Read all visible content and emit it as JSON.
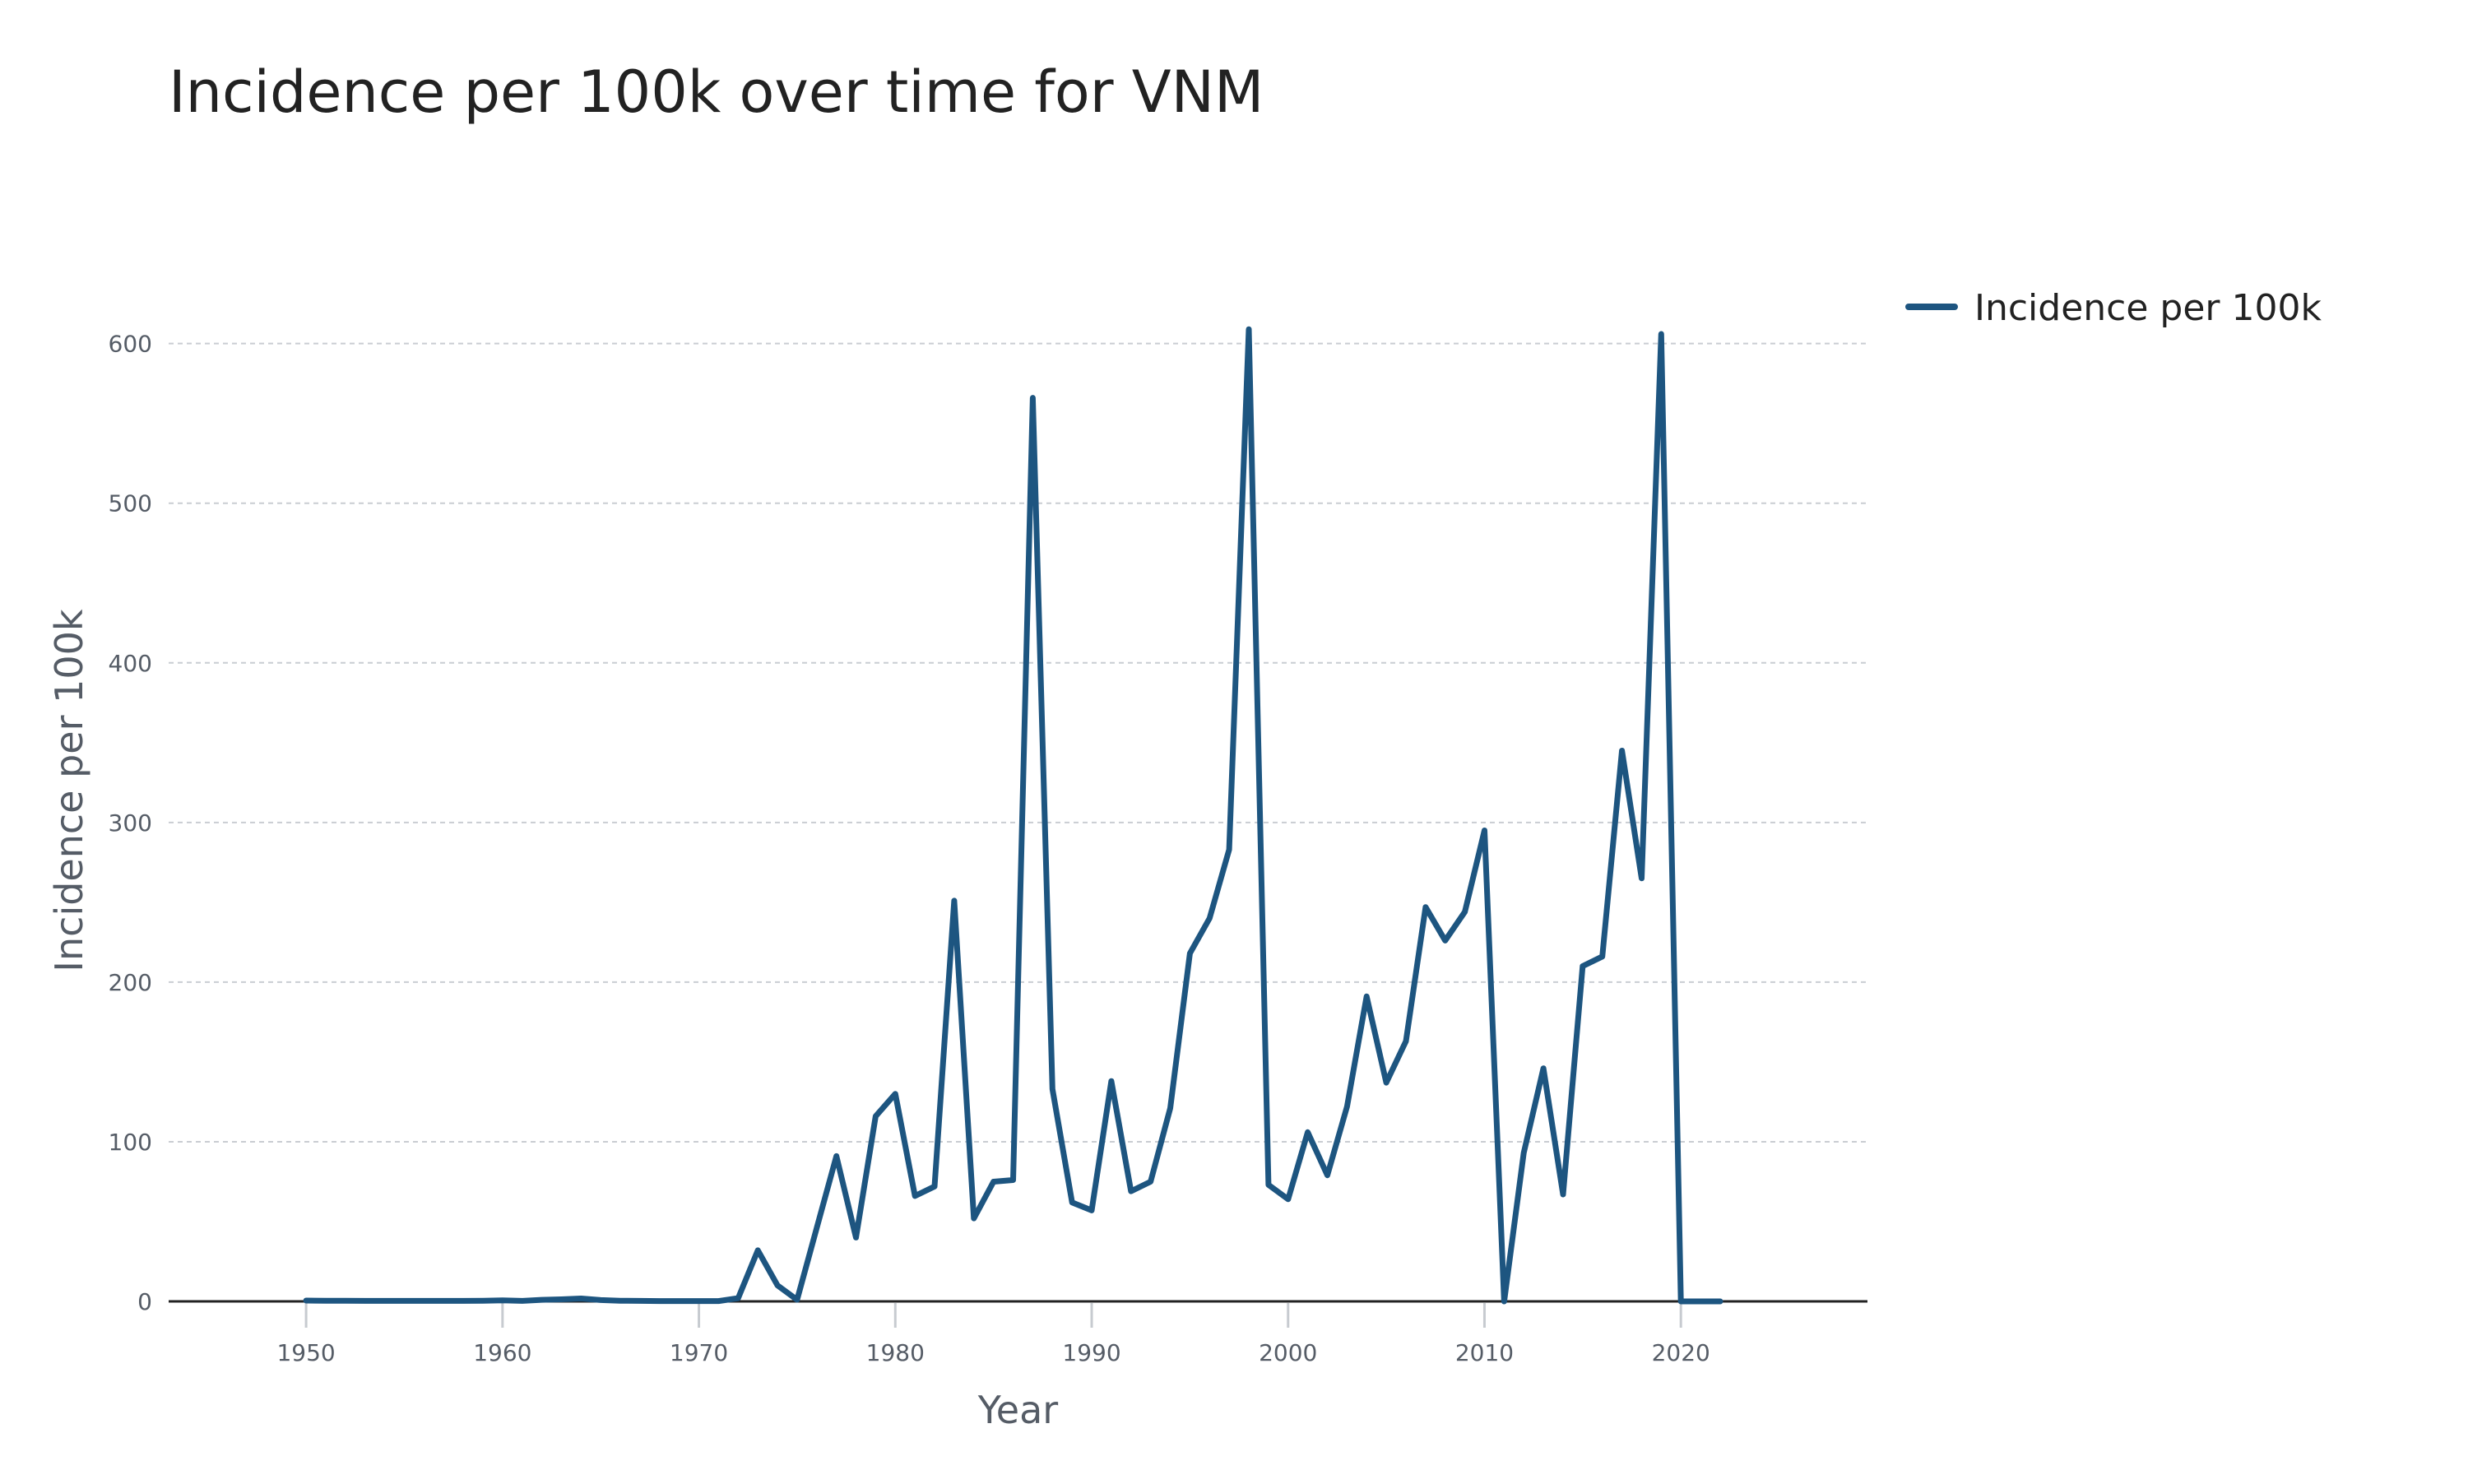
{
  "chart_data": {
    "type": "line",
    "title": "Incidence per 100k over time for VNM",
    "xlabel": "Year",
    "ylabel": "Incidence per 100k",
    "xlim": [
      1943,
      2029.5
    ],
    "ylim": [
      0,
      640
    ],
    "x_ticks": [
      1950,
      1960,
      1970,
      1980,
      1990,
      2000,
      2010,
      2020
    ],
    "y_ticks": [
      0,
      100,
      200,
      300,
      400,
      500,
      600
    ],
    "grid": "horizontal-dashed",
    "legend_position": "top-right-outside",
    "series": [
      {
        "name": "Incidence per 100k",
        "color": "#1d5580",
        "x": [
          1950,
          1951,
          1952,
          1953,
          1954,
          1955,
          1956,
          1957,
          1958,
          1959,
          1960,
          1961,
          1962,
          1963,
          1964,
          1965,
          1966,
          1967,
          1968,
          1969,
          1970,
          1971,
          1972,
          1973,
          1974,
          1975,
          1976,
          1977,
          1978,
          1979,
          1980,
          1981,
          1982,
          1983,
          1984,
          1985,
          1986,
          1987,
          1988,
          1989,
          1990,
          1991,
          1992,
          1993,
          1994,
          1995,
          1996,
          1997,
          1998,
          1999,
          2000,
          2001,
          2002,
          2003,
          2004,
          2005,
          2006,
          2007,
          2008,
          2009,
          2010,
          2011,
          2012,
          2013,
          2014,
          2015,
          2016,
          2017,
          2018,
          2019,
          2020,
          2021,
          2022
        ],
        "values": [
          0.5,
          0.4,
          0.4,
          0.3,
          0.3,
          0.3,
          0.3,
          0.3,
          0.3,
          0.4,
          0.6,
          0.3,
          1.0,
          1.3,
          1.8,
          0.8,
          0.4,
          0.3,
          0.2,
          0.2,
          0.2,
          0.2,
          2,
          32,
          10,
          1,
          46,
          91,
          40,
          116,
          130,
          66,
          72,
          251,
          52,
          75,
          76,
          566,
          133,
          62,
          57,
          138,
          69,
          75,
          121,
          218,
          240,
          283,
          609,
          73,
          64,
          106,
          79,
          122,
          191,
          137,
          163,
          247,
          226,
          244,
          295,
          0,
          93,
          146,
          67,
          210,
          216,
          345,
          265,
          606,
          0,
          0,
          0
        ]
      }
    ]
  }
}
